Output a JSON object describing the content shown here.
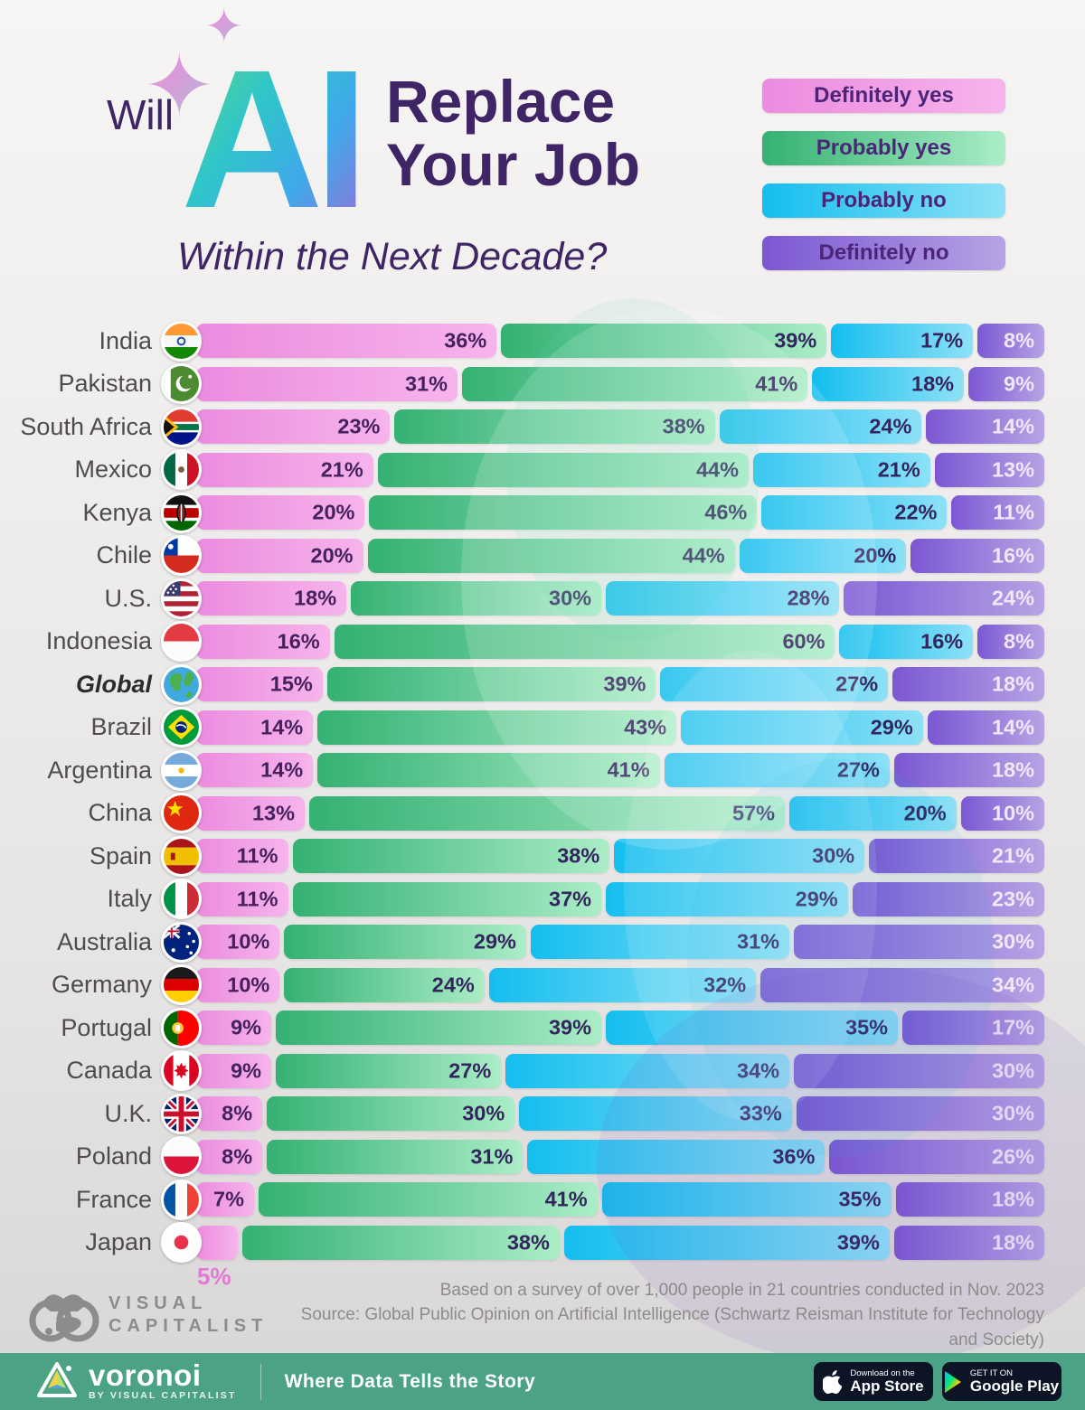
{
  "header": {
    "will": "Will",
    "ai_logo_text": "AI",
    "title_line1": "Replace",
    "title_line2": "Your Job",
    "subtitle": "Within the Next Decade?",
    "title_color": "#3f2566"
  },
  "chart_data": {
    "type": "bar",
    "stacked": true,
    "orientation": "horizontal",
    "unit": "%",
    "xlim": [
      0,
      100
    ],
    "grid": false,
    "legend_position": "top-right",
    "series": [
      {
        "name": "Definitely yes",
        "color_from": "#ec8bdf",
        "color_to": "#f6b4ec",
        "label_color": "#45215f"
      },
      {
        "name": "Probably yes",
        "color_from": "#34b173",
        "color_to": "#abedc7",
        "label_color": "#33255e"
      },
      {
        "name": "Probably no",
        "color_from": "#14beef",
        "color_to": "#8ee1f6",
        "label_color": "#33255e"
      },
      {
        "name": "Definitely no",
        "color_from": "#7b57d3",
        "color_to": "#b7a3e4",
        "label_color": "#efe8f8"
      }
    ],
    "rows": [
      {
        "country": "India",
        "flag": "india",
        "values": [
          36,
          39,
          17,
          8
        ]
      },
      {
        "country": "Pakistan",
        "flag": "pakistan",
        "values": [
          31,
          41,
          18,
          9
        ]
      },
      {
        "country": "South Africa",
        "flag": "south-africa",
        "values": [
          23,
          38,
          24,
          14
        ]
      },
      {
        "country": "Mexico",
        "flag": "mexico",
        "values": [
          21,
          44,
          21,
          13
        ]
      },
      {
        "country": "Kenya",
        "flag": "kenya",
        "values": [
          20,
          46,
          22,
          11
        ]
      },
      {
        "country": "Chile",
        "flag": "chile",
        "values": [
          20,
          44,
          20,
          16
        ]
      },
      {
        "country": "U.S.",
        "flag": "us",
        "values": [
          18,
          30,
          28,
          24
        ]
      },
      {
        "country": "Indonesia",
        "flag": "indonesia",
        "values": [
          16,
          60,
          16,
          8
        ]
      },
      {
        "country": "Global",
        "flag": "globe",
        "values": [
          15,
          39,
          27,
          18
        ],
        "emphasis": true
      },
      {
        "country": "Brazil",
        "flag": "brazil",
        "values": [
          14,
          43,
          29,
          14
        ]
      },
      {
        "country": "Argentina",
        "flag": "argentina",
        "values": [
          14,
          41,
          27,
          18
        ]
      },
      {
        "country": "China",
        "flag": "china",
        "values": [
          13,
          57,
          20,
          10
        ]
      },
      {
        "country": "Spain",
        "flag": "spain",
        "values": [
          11,
          38,
          30,
          21
        ]
      },
      {
        "country": "Italy",
        "flag": "italy",
        "values": [
          11,
          37,
          29,
          23
        ]
      },
      {
        "country": "Australia",
        "flag": "australia",
        "values": [
          10,
          29,
          31,
          30
        ]
      },
      {
        "country": "Germany",
        "flag": "germany",
        "values": [
          10,
          24,
          32,
          34
        ]
      },
      {
        "country": "Portugal",
        "flag": "portugal",
        "values": [
          9,
          39,
          35,
          17
        ]
      },
      {
        "country": "Canada",
        "flag": "canada",
        "values": [
          9,
          27,
          34,
          30
        ]
      },
      {
        "country": "U.K.",
        "flag": "uk",
        "values": [
          8,
          30,
          33,
          30
        ]
      },
      {
        "country": "Poland",
        "flag": "poland",
        "values": [
          8,
          31,
          36,
          26
        ]
      },
      {
        "country": "France",
        "flag": "france",
        "values": [
          7,
          41,
          35,
          18
        ]
      },
      {
        "country": "Japan",
        "flag": "japan",
        "values": [
          5,
          38,
          39,
          18
        ],
        "first_label_below": true
      }
    ]
  },
  "footer": {
    "note": "Based on a survey of over 1,000 people in 21 countries conducted in Nov. 2023",
    "source": "Source: Global Public Opinion on Artificial Intelligence (Schwartz Reisman Institute for Technology and Society)",
    "logo_line1": "VISUAL",
    "logo_line2": "CAPITALIST"
  },
  "bottombar": {
    "brand": "voronoi",
    "brand_sub": "BY VISUAL CAPITALIST",
    "tagline": "Where Data Tells the Story",
    "bar_color": "#4ca284",
    "appstore_small": "Download on the",
    "appstore_big": "App Store",
    "googleplay_small": "GET IT ON",
    "googleplay_big": "Google Play"
  },
  "icons": {
    "sparkle_big": "sparkle-icon",
    "sparkle_small": "sparkle-icon",
    "flags": [
      "india",
      "pakistan",
      "south-africa",
      "mexico",
      "kenya",
      "chile",
      "us",
      "indonesia",
      "globe",
      "brazil",
      "argentina",
      "china",
      "spain",
      "italy",
      "australia",
      "germany",
      "portugal",
      "canada",
      "uk",
      "poland",
      "france",
      "japan"
    ],
    "vc_mark": "visual-capitalist-logo-icon",
    "voronoi_mark": "voronoi-logo-icon",
    "apple": "apple-icon",
    "play_triangle": "google-play-icon"
  }
}
